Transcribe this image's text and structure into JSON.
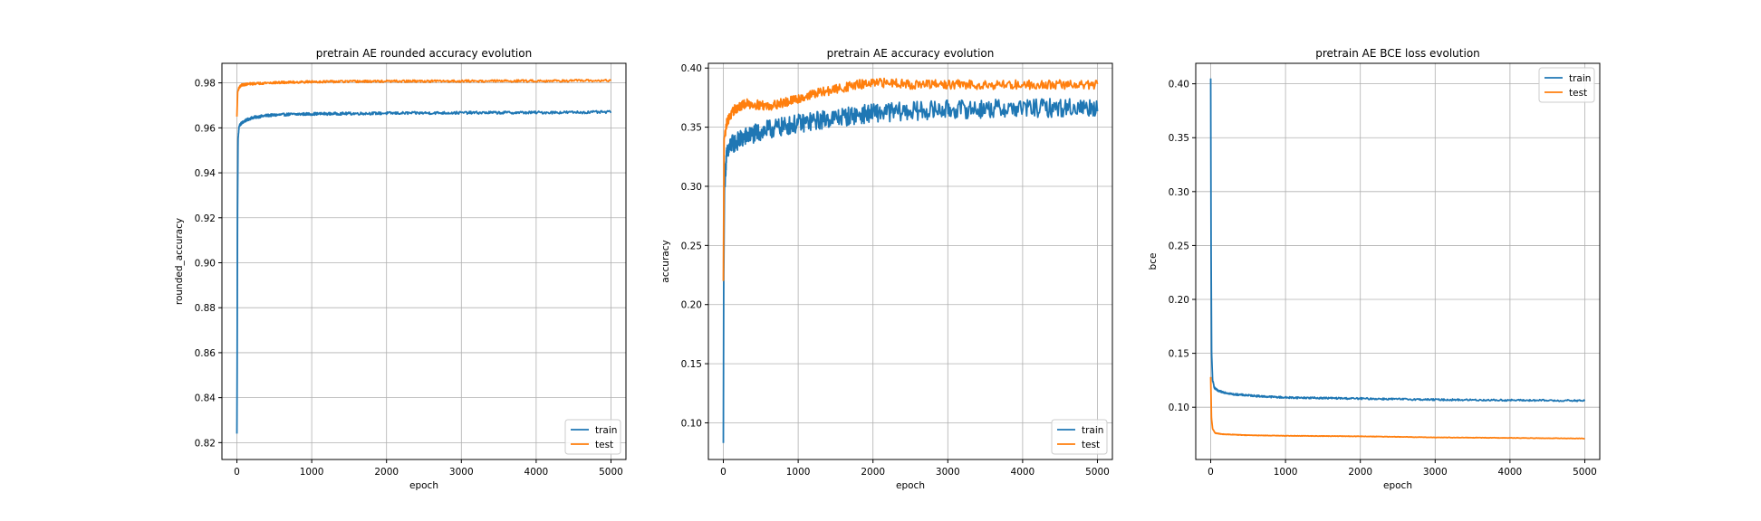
{
  "chart_data": [
    {
      "type": "line",
      "title": "pretrain AE rounded accuracy evolution",
      "xlabel": "epoch",
      "ylabel": "rounded_accuracy",
      "xlim": [
        -200,
        5200
      ],
      "ylim": [
        0.8125,
        0.9887
      ],
      "xticks": [
        0,
        1000,
        2000,
        3000,
        4000,
        5000
      ],
      "yticks": [
        0.82,
        0.84,
        0.86,
        0.88,
        0.9,
        0.92,
        0.94,
        0.96,
        0.98
      ],
      "ytick_labels": [
        "0.82",
        "0.84",
        "0.86",
        "0.88",
        "0.90",
        "0.92",
        "0.94",
        "0.96",
        "0.98"
      ],
      "grid": true,
      "legend_position": "lower right",
      "series": [
        {
          "name": "train",
          "color": "#1f77b4",
          "noise": 0.0006,
          "points": [
            [
              0,
              0.824
            ],
            [
              3,
              0.85
            ],
            [
              8,
              0.92
            ],
            [
              15,
              0.955
            ],
            [
              30,
              0.961
            ],
            [
              60,
              0.962
            ],
            [
              100,
              0.963
            ],
            [
              200,
              0.9645
            ],
            [
              400,
              0.9655
            ],
            [
              700,
              0.966
            ],
            [
              1000,
              0.9662
            ],
            [
              2000,
              0.9665
            ],
            [
              3000,
              0.9667
            ],
            [
              4000,
              0.9668
            ],
            [
              5000,
              0.967
            ]
          ]
        },
        {
          "name": "test",
          "color": "#ff7f0e",
          "noise": 0.0005,
          "points": [
            [
              0,
              0.965
            ],
            [
              10,
              0.976
            ],
            [
              30,
              0.978
            ],
            [
              60,
              0.979
            ],
            [
              150,
              0.9795
            ],
            [
              400,
              0.98
            ],
            [
              1000,
              0.9805
            ],
            [
              2000,
              0.9807
            ],
            [
              3000,
              0.9808
            ],
            [
              4000,
              0.9809
            ],
            [
              5000,
              0.981
            ]
          ]
        }
      ]
    },
    {
      "type": "line",
      "title": "pretrain AE accuracy evolution",
      "xlabel": "epoch",
      "ylabel": "accuracy",
      "xlim": [
        -200,
        5200
      ],
      "ylim": [
        0.069,
        0.404
      ],
      "xticks": [
        0,
        1000,
        2000,
        3000,
        4000,
        5000
      ],
      "yticks": [
        0.1,
        0.15,
        0.2,
        0.25,
        0.3,
        0.35,
        0.4
      ],
      "ytick_labels": [
        "0.10",
        "0.15",
        "0.20",
        "0.25",
        "0.30",
        "0.35",
        "0.40"
      ],
      "grid": true,
      "legend_position": "lower right",
      "series": [
        {
          "name": "train",
          "color": "#1f77b4",
          "noise": 0.008,
          "points": [
            [
              0,
              0.083
            ],
            [
              5,
              0.22
            ],
            [
              15,
              0.3
            ],
            [
              40,
              0.325
            ],
            [
              100,
              0.335
            ],
            [
              300,
              0.342
            ],
            [
              600,
              0.348
            ],
            [
              1000,
              0.353
            ],
            [
              1500,
              0.358
            ],
            [
              2000,
              0.362
            ],
            [
              3000,
              0.365
            ],
            [
              4000,
              0.366
            ],
            [
              5000,
              0.367
            ]
          ]
        },
        {
          "name": "test",
          "color": "#ff7f0e",
          "noise": 0.004,
          "points": [
            [
              0,
              0.22
            ],
            [
              10,
              0.34
            ],
            [
              50,
              0.355
            ],
            [
              150,
              0.365
            ],
            [
              300,
              0.37
            ],
            [
              600,
              0.368
            ],
            [
              900,
              0.372
            ],
            [
              1200,
              0.378
            ],
            [
              1500,
              0.382
            ],
            [
              1800,
              0.386
            ],
            [
              2300,
              0.388
            ],
            [
              2500,
              0.386
            ],
            [
              5000,
              0.386
            ]
          ]
        }
      ]
    },
    {
      "type": "line",
      "title": "pretrain AE BCE loss evolution",
      "xlabel": "epoch",
      "ylabel": "bce",
      "xlim": [
        -200,
        5200
      ],
      "ylim": [
        0.0515,
        0.419
      ],
      "xticks": [
        0,
        1000,
        2000,
        3000,
        4000,
        5000
      ],
      "yticks": [
        0.1,
        0.15,
        0.2,
        0.25,
        0.3,
        0.35,
        0.4
      ],
      "ytick_labels": [
        "0.10",
        "0.15",
        "0.20",
        "0.25",
        "0.30",
        "0.35",
        "0.40"
      ],
      "grid": true,
      "legend_position": "upper right",
      "series": [
        {
          "name": "train",
          "color": "#1f77b4",
          "noise": 0.0008,
          "points": [
            [
              0,
              0.405
            ],
            [
              5,
              0.25
            ],
            [
              12,
              0.15
            ],
            [
              25,
              0.125
            ],
            [
              50,
              0.118
            ],
            [
              100,
              0.115
            ],
            [
              300,
              0.112
            ],
            [
              700,
              0.11
            ],
            [
              1000,
              0.109
            ],
            [
              2000,
              0.108
            ],
            [
              3000,
              0.107
            ],
            [
              4000,
              0.1065
            ],
            [
              5000,
              0.106
            ]
          ]
        },
        {
          "name": "test",
          "color": "#ff7f0e",
          "noise": 0.0002,
          "points": [
            [
              0,
              0.128
            ],
            [
              10,
              0.09
            ],
            [
              25,
              0.08
            ],
            [
              60,
              0.076
            ],
            [
              150,
              0.075
            ],
            [
              500,
              0.074
            ],
            [
              1000,
              0.0735
            ],
            [
              2000,
              0.073
            ],
            [
              3000,
              0.072
            ],
            [
              4000,
              0.0715
            ],
            [
              5000,
              0.071
            ]
          ]
        }
      ]
    }
  ]
}
